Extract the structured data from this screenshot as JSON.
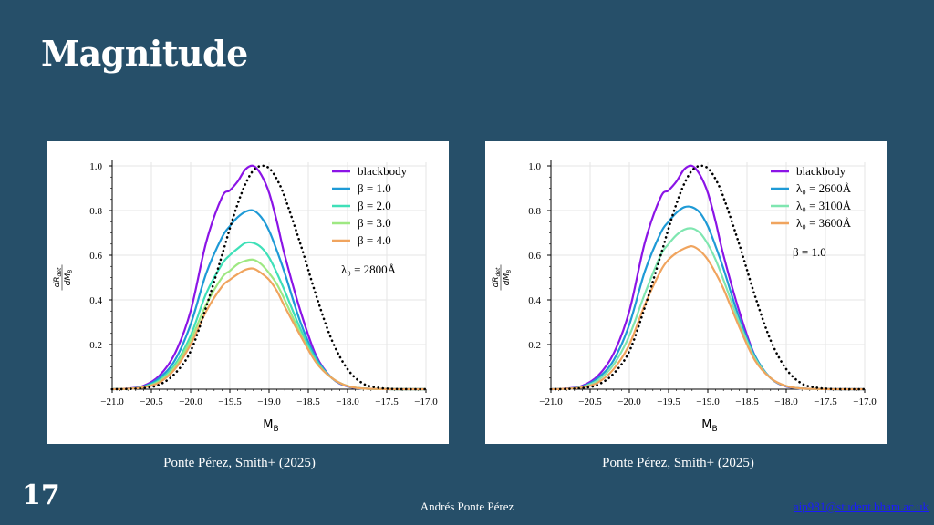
{
  "slide": {
    "title": "Magnitude",
    "number": "17",
    "author": "Andrés Ponte Pérez",
    "email": "aip981@student.bham.ac.uk"
  },
  "captions": {
    "left": "Ponte Pérez, Smith+ (2025)",
    "right": "Ponte Pérez, Smith+ (2025)"
  },
  "chart_data": [
    {
      "type": "line",
      "xlabel": "M_B",
      "ylabel": "dR_det / dM_B",
      "xlim": [
        -21.0,
        -17.0
      ],
      "ylim": [
        0,
        1.0
      ],
      "xticks": [
        "−21.0",
        "−20.5",
        "−20.0",
        "−19.5",
        "−19.0",
        "−18.5",
        "−18.0",
        "−17.5",
        "−17.0"
      ],
      "yticks": [
        "0.2",
        "0.4",
        "0.6",
        "0.8",
        "1.0"
      ],
      "grid": true,
      "legend_position": "top-right",
      "annotation": "λ₀ = 2800Å",
      "x": [
        -21.0,
        -20.8,
        -20.6,
        -20.4,
        -20.2,
        -20.0,
        -19.8,
        -19.6,
        -19.5,
        -19.4,
        -19.3,
        -19.2,
        -19.1,
        -19.0,
        -18.9,
        -18.8,
        -18.6,
        -18.4,
        -18.2,
        -18.0,
        -17.8,
        -17.6,
        -17.4,
        -17.2,
        -17.0
      ],
      "series": [
        {
          "name": "blackbody",
          "color": "#8b14e6",
          "style": "solid",
          "values": [
            0,
            0.003,
            0.015,
            0.06,
            0.16,
            0.35,
            0.66,
            0.86,
            0.89,
            0.93,
            0.985,
            1.0,
            0.96,
            0.88,
            0.75,
            0.6,
            0.35,
            0.15,
            0.05,
            0.012,
            0.003,
            0.001,
            0,
            0,
            0
          ]
        },
        {
          "name": "β = 1.0",
          "color": "#1e9ad6",
          "style": "solid",
          "values": [
            0,
            0.002,
            0.012,
            0.05,
            0.13,
            0.29,
            0.52,
            0.68,
            0.73,
            0.77,
            0.795,
            0.8,
            0.77,
            0.71,
            0.62,
            0.52,
            0.3,
            0.14,
            0.05,
            0.013,
            0.003,
            0.001,
            0,
            0,
            0
          ]
        },
        {
          "name": "β = 2.0",
          "color": "#3fe0b8",
          "style": "solid",
          "values": [
            0,
            0.002,
            0.01,
            0.04,
            0.11,
            0.24,
            0.43,
            0.56,
            0.6,
            0.63,
            0.655,
            0.655,
            0.635,
            0.59,
            0.52,
            0.44,
            0.27,
            0.13,
            0.05,
            0.014,
            0.003,
            0.001,
            0,
            0,
            0
          ]
        },
        {
          "name": "β = 3.0",
          "color": "#9ee882",
          "style": "solid",
          "values": [
            0,
            0.002,
            0.009,
            0.035,
            0.1,
            0.22,
            0.38,
            0.5,
            0.53,
            0.56,
            0.575,
            0.58,
            0.56,
            0.52,
            0.47,
            0.4,
            0.25,
            0.12,
            0.05,
            0.014,
            0.003,
            0.001,
            0,
            0,
            0
          ]
        },
        {
          "name": "β = 4.0",
          "color": "#f0a45e",
          "style": "solid",
          "values": [
            0,
            0.002,
            0.008,
            0.03,
            0.09,
            0.2,
            0.35,
            0.46,
            0.49,
            0.515,
            0.535,
            0.54,
            0.52,
            0.49,
            0.44,
            0.37,
            0.24,
            0.12,
            0.05,
            0.014,
            0.003,
            0.001,
            0,
            0,
            0
          ]
        },
        {
          "name": "",
          "color": "#000000",
          "style": "dotted",
          "values": [
            0,
            0.001,
            0.005,
            0.02,
            0.07,
            0.17,
            0.37,
            0.6,
            0.72,
            0.83,
            0.92,
            0.98,
            1.0,
            0.99,
            0.94,
            0.86,
            0.65,
            0.42,
            0.22,
            0.09,
            0.025,
            0.006,
            0.001,
            0,
            0
          ]
        }
      ]
    },
    {
      "type": "line",
      "xlabel": "M_B",
      "ylabel": "dR_det / dM_B",
      "xlim": [
        -21.0,
        -17.0
      ],
      "ylim": [
        0,
        1.0
      ],
      "xticks": [
        "−21.0",
        "−20.5",
        "−20.0",
        "−19.5",
        "−19.0",
        "−18.5",
        "−18.0",
        "−17.5",
        "−17.0"
      ],
      "yticks": [
        "0.2",
        "0.4",
        "0.6",
        "0.8",
        "1.0"
      ],
      "grid": true,
      "legend_position": "top-right",
      "annotation": "β = 1.0",
      "x": [
        -21.0,
        -20.8,
        -20.6,
        -20.4,
        -20.2,
        -20.0,
        -19.8,
        -19.6,
        -19.5,
        -19.4,
        -19.3,
        -19.2,
        -19.1,
        -19.0,
        -18.9,
        -18.8,
        -18.6,
        -18.4,
        -18.2,
        -18.0,
        -17.8,
        -17.6,
        -17.4,
        -17.2,
        -17.0
      ],
      "series": [
        {
          "name": "blackbody",
          "color": "#8b14e6",
          "style": "solid",
          "values": [
            0,
            0.003,
            0.015,
            0.06,
            0.16,
            0.35,
            0.66,
            0.86,
            0.89,
            0.93,
            0.985,
            1.0,
            0.96,
            0.88,
            0.75,
            0.6,
            0.35,
            0.15,
            0.05,
            0.012,
            0.003,
            0.001,
            0,
            0,
            0
          ]
        },
        {
          "name": "λ₀ = 2600Å",
          "color": "#1e9ad6",
          "style": "solid",
          "values": [
            0,
            0.002,
            0.012,
            0.05,
            0.13,
            0.29,
            0.53,
            0.7,
            0.75,
            0.79,
            0.815,
            0.815,
            0.79,
            0.73,
            0.64,
            0.54,
            0.32,
            0.15,
            0.05,
            0.013,
            0.003,
            0.001,
            0,
            0,
            0
          ]
        },
        {
          "name": "λ₀ = 3100Å",
          "color": "#7fe6b0",
          "style": "solid",
          "values": [
            0,
            0.002,
            0.01,
            0.04,
            0.11,
            0.24,
            0.43,
            0.6,
            0.65,
            0.69,
            0.715,
            0.72,
            0.7,
            0.65,
            0.58,
            0.49,
            0.3,
            0.14,
            0.05,
            0.014,
            0.003,
            0.001,
            0,
            0,
            0
          ]
        },
        {
          "name": "λ₀ = 3600Å",
          "color": "#f0a45e",
          "style": "solid",
          "values": [
            0,
            0.002,
            0.008,
            0.03,
            0.09,
            0.2,
            0.38,
            0.53,
            0.58,
            0.61,
            0.63,
            0.64,
            0.62,
            0.58,
            0.52,
            0.45,
            0.28,
            0.13,
            0.05,
            0.014,
            0.003,
            0.001,
            0,
            0,
            0
          ]
        },
        {
          "name": "",
          "color": "#000000",
          "style": "dotted",
          "values": [
            0,
            0.001,
            0.005,
            0.02,
            0.07,
            0.17,
            0.37,
            0.6,
            0.72,
            0.83,
            0.92,
            0.98,
            1.0,
            0.99,
            0.94,
            0.86,
            0.65,
            0.42,
            0.22,
            0.09,
            0.025,
            0.006,
            0.001,
            0,
            0
          ]
        }
      ]
    }
  ]
}
